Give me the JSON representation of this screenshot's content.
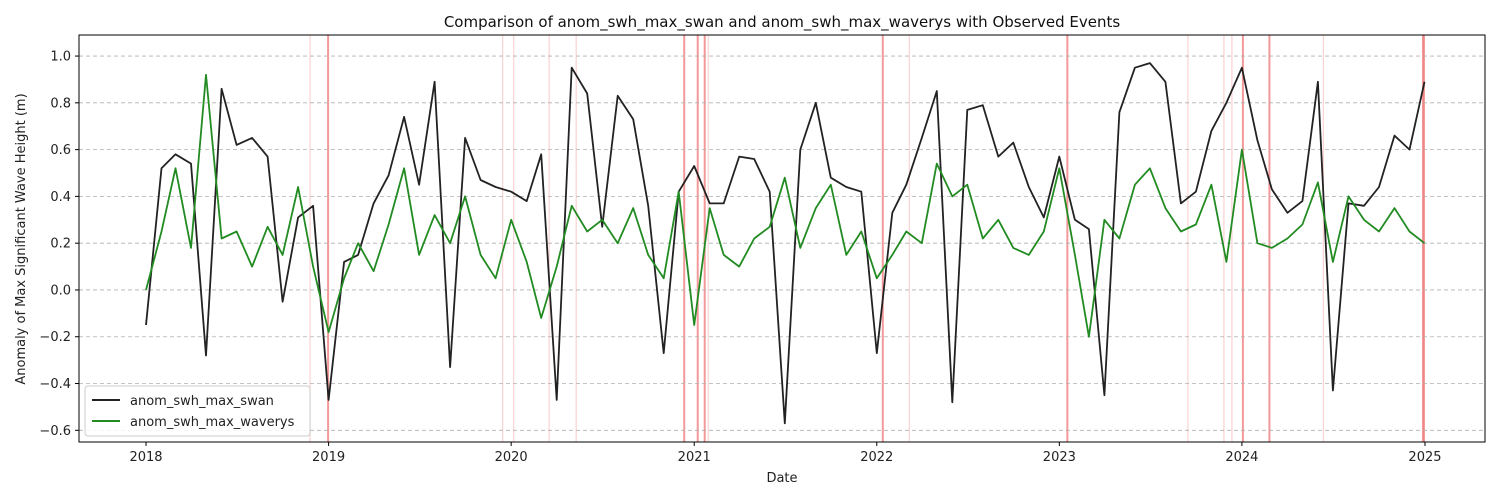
{
  "chart_data": {
    "type": "line",
    "title": "Comparison of anom_swh_max_swan and anom_swh_max_waverys with Observed Events",
    "xlabel": "Date",
    "ylabel": "Anomaly of Max Significant Wave Height (m)",
    "x_ticks": [
      "2018",
      "2019",
      "2020",
      "2021",
      "2022",
      "2023",
      "2024",
      "2025"
    ],
    "y_ticks": [
      "−0.6",
      "−0.4",
      "−0.2",
      "0.0",
      "0.2",
      "0.4",
      "0.6",
      "0.8",
      "1.0"
    ],
    "xlim": [
      "2017-08-20",
      "2025-05-01"
    ],
    "ylim": [
      -0.65,
      1.09
    ],
    "grid": "horizontal dashed",
    "legend_position": "lower-left",
    "series": [
      {
        "name": "anom_swh_max_swan",
        "color": "#222222",
        "x": [
          "2018-01-01",
          "2018-02-01",
          "2018-03-01",
          "2018-04-01",
          "2018-05-01",
          "2018-06-01",
          "2018-07-01",
          "2018-08-01",
          "2018-09-01",
          "2018-10-01",
          "2018-11-01",
          "2018-12-01",
          "2019-01-01",
          "2019-02-01",
          "2019-03-01",
          "2019-04-01",
          "2019-05-01",
          "2019-06-01",
          "2019-07-01",
          "2019-08-01",
          "2019-09-01",
          "2019-10-01",
          "2019-11-01",
          "2019-12-01",
          "2020-01-01",
          "2020-02-01",
          "2020-03-01",
          "2020-04-01",
          "2020-05-01",
          "2020-06-01",
          "2020-07-01",
          "2020-08-01",
          "2020-09-01",
          "2020-10-01",
          "2020-11-01",
          "2020-12-01",
          "2021-01-01",
          "2021-02-01",
          "2021-03-01",
          "2021-04-01",
          "2021-05-01",
          "2021-06-01",
          "2021-07-01",
          "2021-08-01",
          "2021-09-01",
          "2021-10-01",
          "2021-11-01",
          "2021-12-01",
          "2022-01-01",
          "2022-02-01",
          "2022-03-01",
          "2022-04-01",
          "2022-05-01",
          "2022-06-01",
          "2022-07-01",
          "2022-08-01",
          "2022-09-01",
          "2022-10-01",
          "2022-11-01",
          "2022-12-01",
          "2023-01-01",
          "2023-02-01",
          "2023-03-01",
          "2023-04-01",
          "2023-05-01",
          "2023-06-01",
          "2023-07-01",
          "2023-08-01",
          "2023-09-01",
          "2023-10-01",
          "2023-11-01",
          "2023-12-01",
          "2024-01-01",
          "2024-02-01",
          "2024-03-01",
          "2024-04-01",
          "2024-05-01",
          "2024-06-01",
          "2024-07-01",
          "2024-08-01",
          "2024-09-01",
          "2024-10-01",
          "2024-11-01",
          "2024-12-01",
          "2024-12-31"
        ],
        "values": [
          -0.15,
          0.52,
          0.58,
          0.54,
          -0.28,
          0.86,
          0.62,
          0.65,
          0.57,
          -0.05,
          0.31,
          0.36,
          -0.47,
          0.12,
          0.15,
          0.37,
          0.49,
          0.74,
          0.45,
          0.89,
          -0.33,
          0.65,
          0.47,
          0.44,
          0.42,
          0.38,
          0.58,
          -0.47,
          0.95,
          0.84,
          0.27,
          0.83,
          0.73,
          0.36,
          -0.27,
          0.42,
          0.53,
          0.37,
          0.37,
          0.57,
          0.56,
          0.42,
          -0.57,
          0.6,
          0.8,
          0.48,
          0.44,
          0.42,
          -0.27,
          0.33,
          0.45,
          0.65,
          0.85,
          -0.48,
          0.77,
          0.79,
          0.57,
          0.63,
          0.44,
          0.31,
          0.57,
          0.3,
          0.26,
          -0.45,
          0.76,
          0.95,
          0.97,
          0.89,
          0.37,
          0.42,
          0.68,
          0.8,
          0.95,
          0.64,
          0.43,
          0.33,
          0.38,
          0.89,
          -0.43,
          0.37,
          0.36,
          0.44,
          0.66,
          0.6,
          0.89
        ]
      },
      {
        "name": "anom_swh_max_waverys",
        "color": "#228b22",
        "x": [
          "2018-01-01",
          "2018-02-01",
          "2018-03-01",
          "2018-04-01",
          "2018-05-01",
          "2018-06-01",
          "2018-07-01",
          "2018-08-01",
          "2018-09-01",
          "2018-10-01",
          "2018-11-01",
          "2018-12-01",
          "2019-01-01",
          "2019-02-01",
          "2019-03-01",
          "2019-04-01",
          "2019-05-01",
          "2019-06-01",
          "2019-07-01",
          "2019-08-01",
          "2019-09-01",
          "2019-10-01",
          "2019-11-01",
          "2019-12-01",
          "2020-01-01",
          "2020-02-01",
          "2020-03-01",
          "2020-04-01",
          "2020-05-01",
          "2020-06-01",
          "2020-07-01",
          "2020-08-01",
          "2020-09-01",
          "2020-10-01",
          "2020-11-01",
          "2020-12-01",
          "2021-01-01",
          "2021-02-01",
          "2021-03-01",
          "2021-04-01",
          "2021-05-01",
          "2021-06-01",
          "2021-07-01",
          "2021-08-01",
          "2021-09-01",
          "2021-10-01",
          "2021-11-01",
          "2021-12-01",
          "2022-01-01",
          "2022-02-01",
          "2022-03-01",
          "2022-04-01",
          "2022-05-01",
          "2022-06-01",
          "2022-07-01",
          "2022-08-01",
          "2022-09-01",
          "2022-10-01",
          "2022-11-01",
          "2022-12-01",
          "2023-01-01",
          "2023-02-01",
          "2023-03-01",
          "2023-04-01",
          "2023-05-01",
          "2023-06-01",
          "2023-07-01",
          "2023-08-01",
          "2023-09-01",
          "2023-10-01",
          "2023-11-01",
          "2023-12-01",
          "2024-01-01",
          "2024-02-01",
          "2024-03-01",
          "2024-04-01",
          "2024-05-01",
          "2024-06-01",
          "2024-07-01",
          "2024-08-01",
          "2024-09-01",
          "2024-10-01",
          "2024-11-01",
          "2024-12-01",
          "2024-12-31"
        ],
        "values": [
          0.0,
          0.25,
          0.52,
          0.18,
          0.92,
          0.22,
          0.25,
          0.1,
          0.27,
          0.15,
          0.44,
          0.1,
          -0.18,
          0.05,
          0.2,
          0.08,
          0.28,
          0.52,
          0.15,
          0.32,
          0.2,
          0.4,
          0.15,
          0.05,
          0.3,
          0.12,
          -0.12,
          0.1,
          0.36,
          0.25,
          0.3,
          0.2,
          0.35,
          0.15,
          0.05,
          0.42,
          -0.15,
          0.35,
          0.15,
          0.1,
          0.22,
          0.27,
          0.48,
          0.18,
          0.35,
          0.45,
          0.15,
          0.25,
          0.05,
          0.15,
          0.25,
          0.2,
          0.54,
          0.4,
          0.45,
          0.22,
          0.3,
          0.18,
          0.15,
          0.25,
          0.52,
          0.15,
          -0.2,
          0.3,
          0.22,
          0.45,
          0.52,
          0.35,
          0.25,
          0.28,
          0.45,
          0.12,
          0.6,
          0.2,
          0.18,
          0.22,
          0.28,
          0.46,
          0.12,
          0.4,
          0.3,
          0.25,
          0.35,
          0.25,
          0.2
        ]
      }
    ],
    "event_lines": {
      "color": "#f08080",
      "strong": [
        "2018-12-31",
        "2020-12-12",
        "2021-01-08",
        "2021-01-22",
        "2022-01-13",
        "2023-01-17",
        "2024-01-03",
        "2024-02-25",
        "2024-12-28",
        "2024-12-30"
      ],
      "faint": [
        "2018-11-25",
        "2019-12-15",
        "2020-01-06",
        "2020-03-17",
        "2020-05-10",
        "2021-01-29",
        "2022-03-07",
        "2023-09-15",
        "2023-11-26",
        "2023-12-12",
        "2024-06-12"
      ]
    }
  }
}
